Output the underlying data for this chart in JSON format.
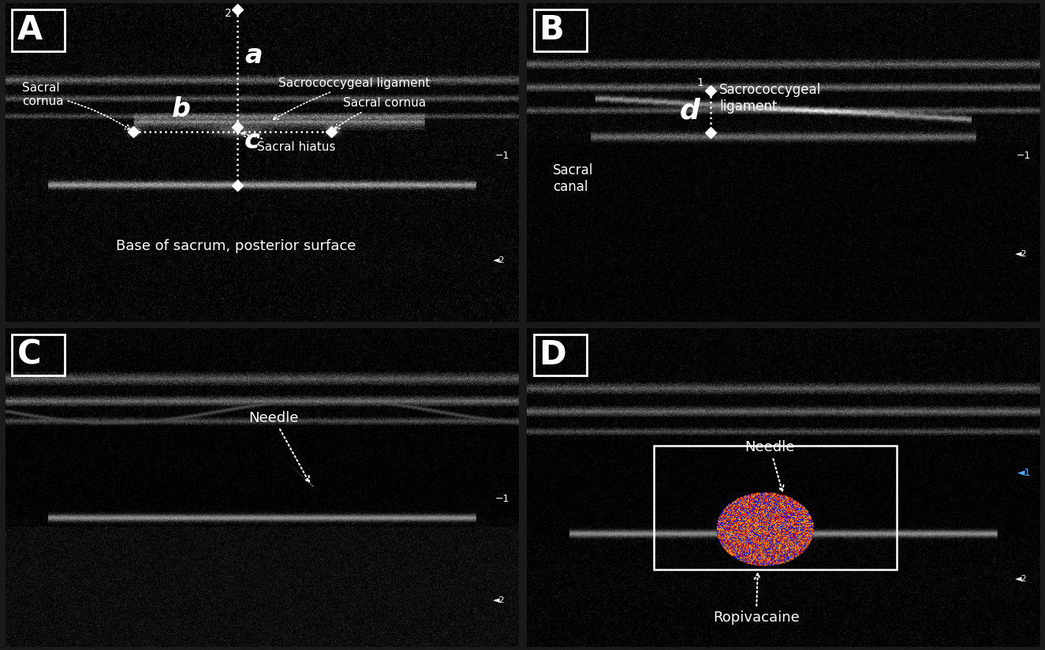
{
  "figure_bg": "#1a1a1a",
  "panel_bg": "#111111",
  "panels": [
    "A",
    "B",
    "C",
    "D"
  ],
  "panel_label_fontsize": 28,
  "panel_label_color": "white",
  "annotation_fontsize": 13,
  "annotation_color": "white",
  "border_color": "white",
  "border_lw": 1.5,
  "fig_width": 13.25,
  "fig_height": 8.24
}
